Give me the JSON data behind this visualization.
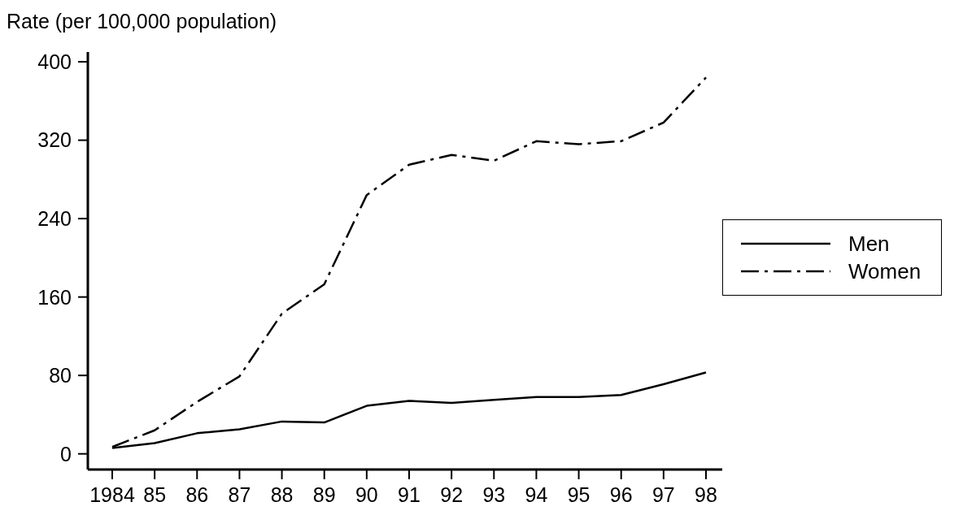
{
  "chart_data": {
    "type": "line",
    "ylabel": "Rate (per 100,000 population)",
    "categories": [
      "1984",
      "85",
      "86",
      "87",
      "88",
      "89",
      "90",
      "91",
      "92",
      "93",
      "94",
      "95",
      "96",
      "97",
      "98"
    ],
    "ylim": [
      -16,
      410
    ],
    "yticks": [
      0,
      80,
      160,
      240,
      320,
      400
    ],
    "grid": false,
    "legend": "right",
    "marker": "none",
    "series": [
      {
        "name": "Men",
        "color": "#000000",
        "line_style": "solid",
        "values": [
          6,
          11,
          21,
          25,
          33,
          32,
          49,
          54,
          52,
          55,
          58,
          58,
          60,
          71,
          83
        ]
      },
      {
        "name": "Women",
        "color": "#000000",
        "line_style": "dashed",
        "values": [
          7,
          24,
          53,
          79,
          143,
          173,
          264,
          295,
          305,
          299,
          319,
          316,
          319,
          338,
          384
        ]
      }
    ]
  }
}
